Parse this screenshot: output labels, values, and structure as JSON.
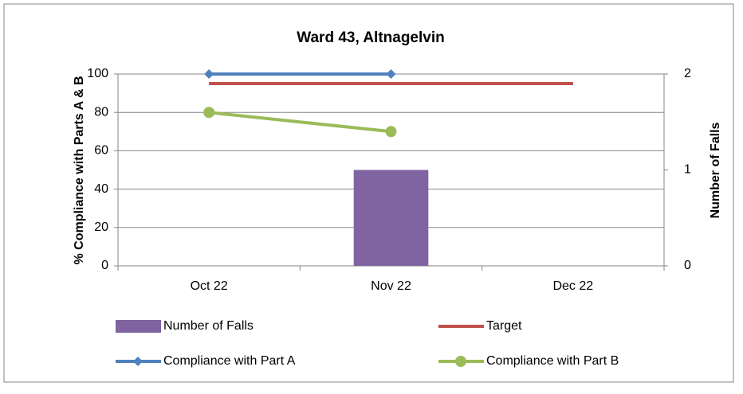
{
  "chart_data": {
    "type": "combo",
    "title": "Ward 43, Altnagelvin",
    "y_label": "% Compliance with Parts A & B",
    "y2_label": "Number of Falls",
    "categories": [
      "Oct 22",
      "Nov 22",
      "Dec 22"
    ],
    "series": [
      {
        "name": "Number of Falls",
        "type": "bar",
        "axis": "y2",
        "color": "#8064a2",
        "values": [
          0,
          1,
          null
        ]
      },
      {
        "name": "Target",
        "type": "line",
        "color": "#c0504d",
        "values": [
          95,
          95,
          95
        ]
      },
      {
        "name": "Compliance with Part A",
        "type": "line",
        "marker": "diamond",
        "color": "#4f81bd",
        "values": [
          100,
          100,
          null
        ]
      },
      {
        "name": "Compliance with Part B",
        "type": "line",
        "marker": "circle",
        "color": "#9bbb59",
        "values": [
          80,
          70,
          null
        ]
      }
    ],
    "ylim": [
      0,
      100
    ],
    "yticks": [
      0,
      20,
      40,
      60,
      80,
      100
    ],
    "y2lim": [
      0,
      2
    ],
    "y2ticks": [
      0,
      1,
      2
    ],
    "grid": true
  }
}
